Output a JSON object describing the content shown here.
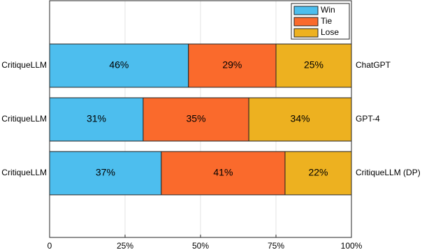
{
  "chart_data": {
    "type": "stacked-bar-horizontal",
    "categories": [
      "CritiqueLLM",
      "CritiqueLLM",
      "CritiqueLLM"
    ],
    "right_labels": [
      "ChatGPT",
      "GPT-4",
      "CritiqueLLM (DP)"
    ],
    "series": [
      {
        "name": "Win",
        "color": "#4dbeee",
        "values": [
          46,
          31,
          37
        ],
        "value_labels": [
          "46%",
          "31%",
          "37%"
        ]
      },
      {
        "name": "Tie",
        "color": "#fa6a2c",
        "values": [
          29,
          35,
          41
        ],
        "value_labels": [
          "29%",
          "35%",
          "41%"
        ]
      },
      {
        "name": "Lose",
        "color": "#edb120",
        "values": [
          25,
          34,
          22
        ],
        "value_labels": [
          "25%",
          "34%",
          "22%"
        ]
      }
    ],
    "xlim": [
      0,
      100
    ],
    "xticks": [
      0,
      {
        "value": 25,
        "label": "25%"
      },
      {
        "value": 50,
        "label": "50%"
      },
      {
        "value": 75,
        "label": "75%"
      },
      {
        "value": 100,
        "label": "100%"
      }
    ],
    "grid": true,
    "legend": "upper right"
  }
}
